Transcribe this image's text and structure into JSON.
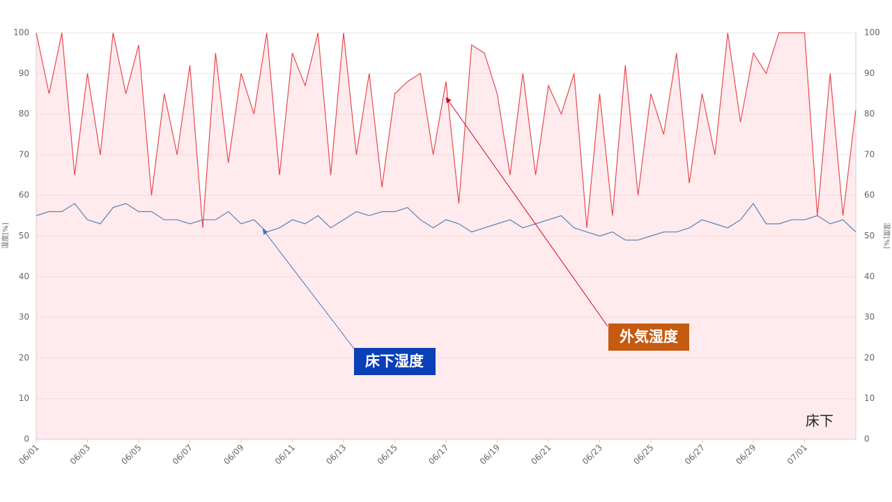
{
  "chart_data": {
    "type": "line",
    "categories": [
      "06/01",
      null,
      null,
      null,
      "06/03",
      null,
      null,
      null,
      "06/05",
      null,
      null,
      null,
      "06/07",
      null,
      null,
      null,
      "06/09",
      null,
      null,
      null,
      "06/11",
      null,
      null,
      null,
      "06/13",
      null,
      null,
      null,
      "06/15",
      null,
      null,
      null,
      "06/17",
      null,
      null,
      null,
      "06/19",
      null,
      null,
      null,
      "06/21",
      null,
      null,
      null,
      "06/23",
      null,
      null,
      null,
      "06/25",
      null,
      null,
      null,
      "06/27",
      null,
      null,
      null,
      "06/29",
      null,
      null,
      null,
      "07/01",
      null,
      null,
      null,
      null
    ],
    "series": [
      {
        "name": "外気湿度",
        "color": "#e8474c",
        "fill": "rgba(255,205,210,0.4)",
        "values": [
          100,
          85,
          100,
          65,
          90,
          70,
          100,
          85,
          97,
          60,
          85,
          70,
          92,
          52,
          95,
          68,
          90,
          80,
          100,
          65,
          95,
          87,
          100,
          65,
          100,
          70,
          90,
          62,
          85,
          88,
          90,
          70,
          88,
          58,
          97,
          95,
          85,
          65,
          90,
          65,
          87,
          80,
          90,
          52,
          85,
          55,
          92,
          60,
          85,
          75,
          95,
          63,
          85,
          70,
          100,
          78,
          95,
          90,
          100,
          100,
          100,
          55,
          90,
          55,
          81
        ]
      },
      {
        "name": "床下湿度",
        "color": "#5b7fb5",
        "axis": "y2",
        "values": [
          55,
          56,
          56,
          58,
          54,
          53,
          57,
          58,
          56,
          56,
          54,
          54,
          53,
          54,
          54,
          56,
          53,
          54,
          51,
          52,
          54,
          53,
          55,
          52,
          54,
          56,
          55,
          56,
          56,
          57,
          54,
          52,
          54,
          53,
          51,
          52,
          53,
          54,
          52,
          53,
          54,
          55,
          52,
          51,
          50,
          51,
          49,
          49,
          50,
          51,
          51,
          52,
          54,
          53,
          52,
          54,
          58,
          53,
          53,
          54,
          54,
          55,
          53,
          54,
          51
        ]
      }
    ],
    "ylim": [
      0,
      100
    ],
    "yticks": [
      0,
      10,
      20,
      30,
      40,
      50,
      60,
      70,
      80,
      90,
      100
    ],
    "y2lim": [
      0,
      100
    ],
    "y2ticks": [
      0,
      10,
      20,
      30,
      40,
      50,
      60,
      70,
      80,
      90,
      100
    ],
    "ylabel": "湿度[%]",
    "y2label": "湿度[%]",
    "grid": true,
    "annotations": [
      "床下湿度",
      "外気湿度",
      "床下"
    ]
  }
}
